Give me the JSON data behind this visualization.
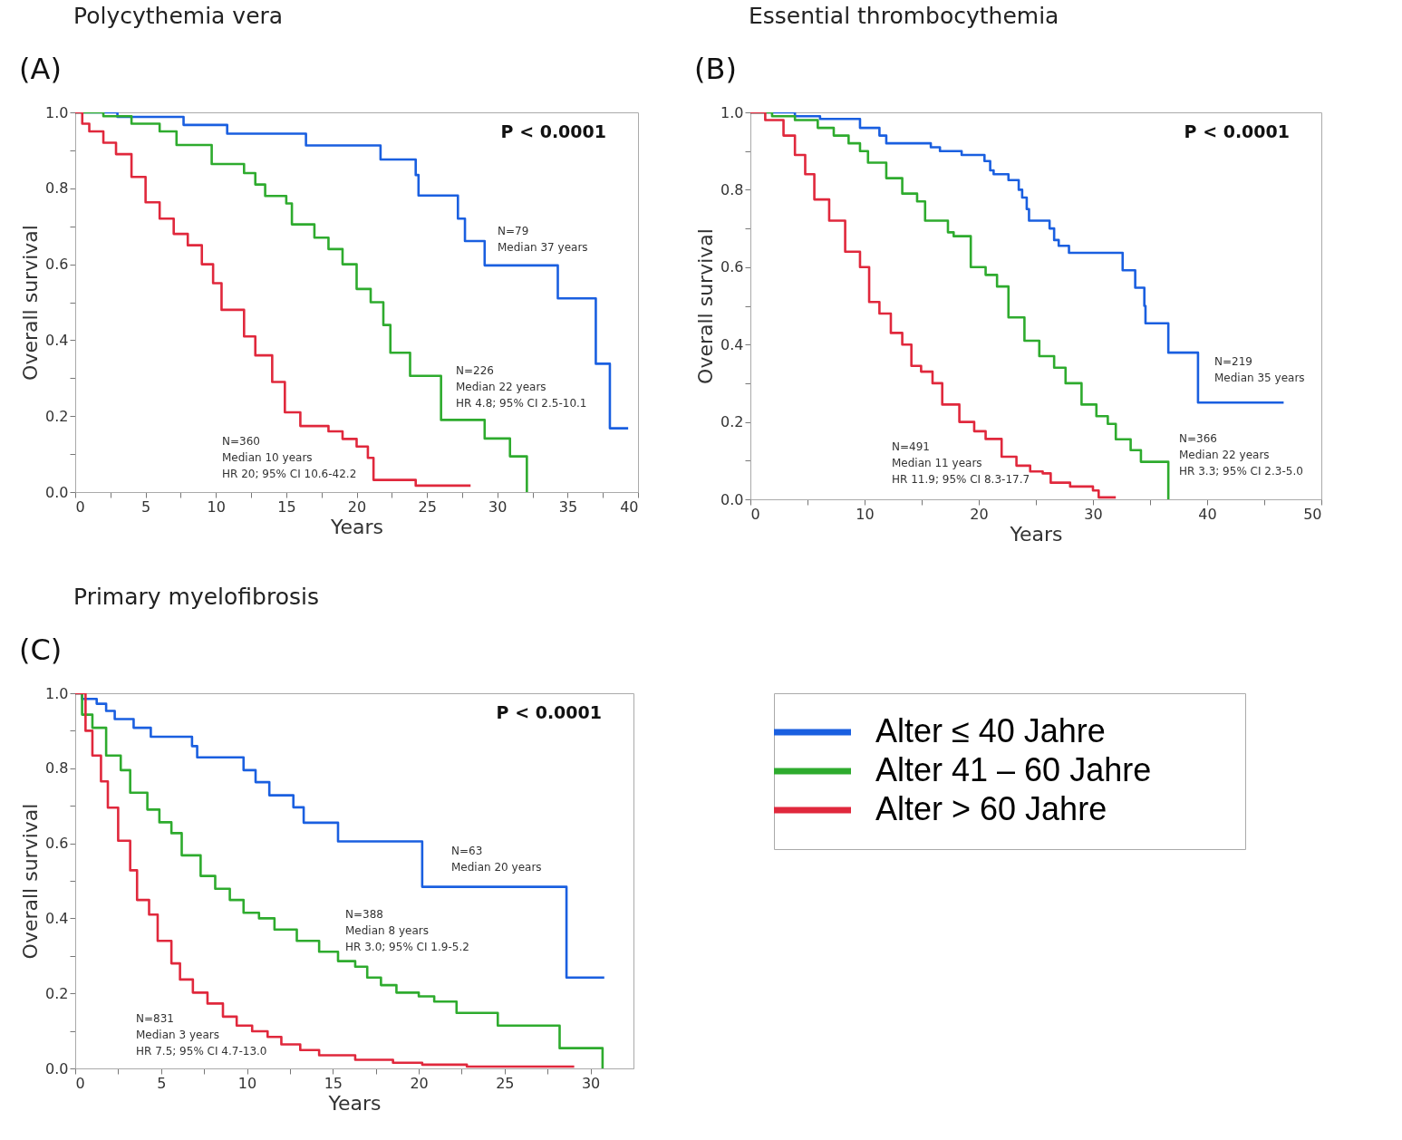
{
  "chart_data": [
    {
      "type": "step",
      "title": "Polycythemia vera",
      "xlabel": "Years",
      "ylabel": "Overall survival",
      "xlim": [
        0,
        40
      ],
      "ylim": [
        0,
        1
      ],
      "xticks": [
        0,
        {
          "value": 2.5,
          "label": null
        },
        5,
        {
          "value": 7.5,
          "label": null
        },
        10,
        {
          "value": 12.5,
          "label": null
        },
        15,
        {
          "value": 17.5,
          "label": null
        },
        20,
        {
          "value": 22.5,
          "label": null
        },
        25,
        {
          "value": 27.5,
          "label": null
        },
        30,
        {
          "value": 32.5,
          "label": null
        },
        35,
        {
          "value": 37.5,
          "label": null
        },
        40
      ],
      "yticks": [
        {
          "value": 0,
          "label": "0.0"
        },
        {
          "value": 0.1,
          "label": null
        },
        0.2,
        {
          "value": 0.3,
          "label": null
        },
        0.4,
        {
          "value": 0.5,
          "label": null
        },
        0.6,
        {
          "value": 0.7,
          "label": null
        },
        0.8,
        {
          "value": 0.9,
          "label": null
        },
        {
          "value": 1,
          "label": "1.0"
        }
      ],
      "series": [
        {
          "color": "#1a5fe0",
          "x": [
            0,
            3.0,
            7.7,
            10.8,
            16.4,
            21.7,
            24.2,
            24.4,
            27.2,
            27.7,
            29.1,
            34.3,
            37.0,
            38.0,
            39.3
          ],
          "values": [
            1,
            0.988,
            0.967,
            0.944,
            0.913,
            0.876,
            0.835,
            0.781,
            0.72,
            0.661,
            0.597,
            0.51,
            0.338,
            0.168,
            0.168
          ]
        },
        {
          "color": "#2eab2e",
          "x": [
            0,
            2,
            4,
            6,
            7.2,
            9.7,
            12,
            12.8,
            13.5,
            15,
            15.4,
            17,
            18,
            19,
            20,
            21,
            21.9,
            22.4,
            23.8,
            26.0,
            29.1,
            30.9,
            32.1
          ],
          "values": [
            1,
            0.99,
            0.97,
            0.95,
            0.914,
            0.864,
            0.84,
            0.81,
            0.78,
            0.76,
            0.705,
            0.67,
            0.64,
            0.6,
            0.535,
            0.5,
            0.44,
            0.367,
            0.306,
            0.19,
            0.141,
            0.094,
            0
          ]
        },
        {
          "color": "#e0283c",
          "x": [
            0,
            0.5,
            1,
            2,
            2.9,
            4,
            5,
            6,
            7,
            8,
            9,
            9.8,
            10.4,
            12,
            12.8,
            14,
            14.9,
            16,
            18,
            19,
            20,
            20.8,
            21.2,
            24.2,
            28.1
          ],
          "values": [
            1,
            0.97,
            0.95,
            0.92,
            0.89,
            0.83,
            0.763,
            0.72,
            0.68,
            0.65,
            0.6,
            0.55,
            0.48,
            0.41,
            0.36,
            0.29,
            0.21,
            0.174,
            0.16,
            0.14,
            0.12,
            0.09,
            0.032,
            0.017,
            0.017
          ]
        }
      ],
      "annotations": [
        "(A)",
        "P < 0.0001",
        "N=79\nMedian 37 years",
        "N=226\nMedian 22 years\nHR 4.8; 95% CI 2.5-10.1",
        "N=360\nMedian 10 years\nHR 20; 95% CI 10.6-42.2"
      ]
    },
    {
      "type": "step",
      "title": "Essential thrombocythemia",
      "xlabel": "Years",
      "ylabel": "Overall survival",
      "xlim": [
        0,
        50
      ],
      "ylim": [
        0,
        1
      ],
      "xticks": [
        0,
        {
          "value": 5,
          "label": null
        },
        10,
        {
          "value": 15,
          "label": null
        },
        20,
        {
          "value": 25,
          "label": null
        },
        30,
        {
          "value": 35,
          "label": null
        },
        40,
        {
          "value": 45,
          "label": null
        },
        50
      ],
      "yticks": [
        {
          "value": 0,
          "label": "0.0"
        },
        {
          "value": 0.1,
          "label": null
        },
        0.2,
        {
          "value": 0.3,
          "label": null
        },
        0.4,
        {
          "value": 0.5,
          "label": null
        },
        0.6,
        {
          "value": 0.7,
          "label": null
        },
        0.8,
        {
          "value": 0.9,
          "label": null
        },
        {
          "value": 1,
          "label": "1.0"
        }
      ],
      "series": [
        {
          "color": "#1a5fe0",
          "x": [
            0,
            3.9,
            6.1,
            9.6,
            11.3,
            11.9,
            15.8,
            16.6,
            18.5,
            20.5,
            21.0,
            21.3,
            22.6,
            23.5,
            23.8,
            24.2,
            24.4,
            26.2,
            26.6,
            27.0,
            27.9,
            32.6,
            33.7,
            34.5,
            34.6,
            36.6,
            39.2,
            46.7
          ],
          "values": [
            1,
            0.99,
            0.983,
            0.96,
            0.94,
            0.92,
            0.91,
            0.9,
            0.89,
            0.874,
            0.85,
            0.84,
            0.825,
            0.8,
            0.78,
            0.75,
            0.72,
            0.7,
            0.67,
            0.655,
            0.637,
            0.592,
            0.547,
            0.5,
            0.455,
            0.379,
            0.25,
            0.25
          ]
        },
        {
          "color": "#2eab2e",
          "x": [
            0,
            1.9,
            3.9,
            5.9,
            7.3,
            8.6,
            9.6,
            10.3,
            11.9,
            13.3,
            14.6,
            15.3,
            17.3,
            17.8,
            19.3,
            20.6,
            21.6,
            22.6,
            24.0,
            25.3,
            26.6,
            27.6,
            29.0,
            30.3,
            31.3,
            32.0,
            33.3,
            34.2,
            36.6
          ],
          "values": [
            1,
            0.99,
            0.98,
            0.96,
            0.94,
            0.92,
            0.9,
            0.87,
            0.83,
            0.79,
            0.77,
            0.72,
            0.69,
            0.68,
            0.6,
            0.58,
            0.55,
            0.47,
            0.41,
            0.37,
            0.34,
            0.3,
            0.245,
            0.215,
            0.195,
            0.155,
            0.127,
            0.097,
            0
          ]
        },
        {
          "color": "#e0283c",
          "x": [
            0,
            1.3,
            2.9,
            3.9,
            4.8,
            5.6,
            6.9,
            8.3,
            9.6,
            10.4,
            11.3,
            12.3,
            13.3,
            14.1,
            14.95,
            15.95,
            16.8,
            18.3,
            19.6,
            20.6,
            22.0,
            23.3,
            24.5,
            25.6,
            26.3,
            28.0,
            30.0,
            30.5,
            32.0
          ],
          "values": [
            1,
            0.98,
            0.94,
            0.89,
            0.84,
            0.775,
            0.72,
            0.64,
            0.6,
            0.51,
            0.48,
            0.43,
            0.4,
            0.345,
            0.33,
            0.3,
            0.245,
            0.2,
            0.176,
            0.156,
            0.11,
            0.087,
            0.072,
            0.067,
            0.043,
            0.033,
            0.023,
            0.005,
            0.005
          ]
        }
      ],
      "annotations": [
        "(B)",
        "P < 0.0001",
        "N=219\nMedian 35 years",
        "N=366\nMedian 22 years\nHR 3.3; 95% CI 2.3-5.0",
        "N=491\nMedian 11 years\nHR 11.9; 95% CI 8.3-17.7"
      ]
    },
    {
      "type": "step",
      "title": "Primary myelofibrosis",
      "xlabel": "Years",
      "ylabel": "Overall survival",
      "xlim": [
        0,
        32.5
      ],
      "ylim": [
        0,
        1
      ],
      "legend": "right",
      "xticks": [
        0,
        {
          "value": 2.5,
          "label": null
        },
        5,
        {
          "value": 7.5,
          "label": null
        },
        10,
        {
          "value": 12.5,
          "label": null
        },
        15,
        {
          "value": 17.5,
          "label": null
        },
        20,
        {
          "value": 22.5,
          "label": null
        },
        25,
        {
          "value": 27.5,
          "label": null
        },
        30
      ],
      "yticks": [
        {
          "value": 0,
          "label": "0.0"
        },
        {
          "value": 0.1,
          "label": null
        },
        0.2,
        {
          "value": 0.3,
          "label": null
        },
        0.4,
        {
          "value": 0.5,
          "label": null
        },
        0.6,
        {
          "value": 0.7,
          "label": null
        },
        0.8,
        {
          "value": 0.9,
          "label": null
        },
        {
          "value": 1,
          "label": "1.0"
        }
      ],
      "series": [
        {
          "name": "Alter ≤ 40 Jahre",
          "color": "#1a5fe0",
          "x": [
            0,
            0.4,
            1.25,
            1.8,
            2.3,
            3.4,
            4.4,
            6.8,
            7.1,
            9.8,
            10.5,
            11.3,
            12.7,
            13.3,
            15.3,
            20.2,
            28.6,
            30.8
          ],
          "values": [
            1,
            0.985,
            0.972,
            0.953,
            0.931,
            0.908,
            0.884,
            0.859,
            0.829,
            0.795,
            0.763,
            0.728,
            0.696,
            0.655,
            0.605,
            0.484,
            0.242,
            0.242
          ]
        },
        {
          "name": "Alter 41 – 60 Jahre",
          "color": "#2eab2e",
          "x": [
            0,
            0.4,
            1.0,
            1.8,
            2.65,
            3.2,
            4.2,
            4.9,
            5.6,
            6.2,
            7.3,
            8.15,
            9.0,
            9.8,
            10.7,
            11.6,
            12.9,
            14.2,
            15.3,
            16.3,
            17.0,
            17.8,
            18.7,
            20.0,
            20.9,
            22.2,
            24.6,
            28.2,
            30.7
          ],
          "values": [
            1,
            0.943,
            0.908,
            0.834,
            0.795,
            0.735,
            0.69,
            0.656,
            0.627,
            0.568,
            0.513,
            0.479,
            0.449,
            0.415,
            0.4,
            0.37,
            0.34,
            0.311,
            0.286,
            0.271,
            0.242,
            0.222,
            0.202,
            0.192,
            0.178,
            0.148,
            0.114,
            0.054,
            0
          ]
        },
        {
          "name": "Alter > 60 Jahre",
          "color": "#e0283c",
          "x": [
            0,
            0.6,
            1.0,
            1.5,
            1.9,
            2.5,
            3.2,
            3.6,
            4.3,
            4.8,
            5.6,
            6.1,
            6.85,
            7.7,
            8.6,
            9.4,
            10.3,
            11.2,
            12.0,
            13.1,
            14.2,
            16.3,
            18.5,
            20.2,
            22.8,
            29.05
          ],
          "values": [
            1,
            0.9,
            0.834,
            0.765,
            0.695,
            0.607,
            0.528,
            0.449,
            0.41,
            0.34,
            0.28,
            0.237,
            0.202,
            0.173,
            0.138,
            0.114,
            0.099,
            0.084,
            0.064,
            0.049,
            0.035,
            0.023,
            0.015,
            0.01,
            0.005,
            0.005
          ]
        }
      ],
      "annotations": [
        "(C)",
        "P < 0.0001",
        "N=63\nMedian 20 years",
        "N=388\nMedian 8 years\nHR 3.0; 95% CI 1.9-5.2",
        "N=831\nMedian 3 years\nHR 7.5; 95% CI 4.7-13.0"
      ]
    }
  ]
}
